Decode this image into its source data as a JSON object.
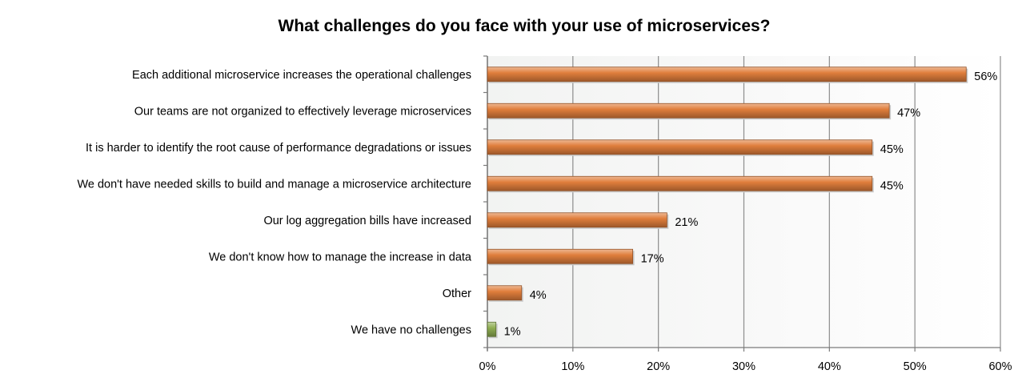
{
  "chart_data": {
    "type": "bar",
    "orientation": "horizontal",
    "title": "What challenges do you face with your use of microservices?",
    "xlabel": "",
    "ylabel": "",
    "categories": [
      "Each additional microservice increases the operational challenges",
      "Our teams are not organized to effectively leverage microservices",
      "It is harder to identify the root cause of performance degradations or issues",
      "We don't have needed skills to build and manage a microservice architecture",
      "Our log aggregation bills have increased",
      "We don't know how to manage the increase in data",
      "Other",
      "We have no challenges"
    ],
    "values": [
      56,
      47,
      45,
      45,
      21,
      17,
      4,
      1
    ],
    "value_labels": [
      "56%",
      "47%",
      "45%",
      "45%",
      "21%",
      "17%",
      "4%",
      "1%"
    ],
    "bar_colors": [
      "#e07e3c",
      "#e07e3c",
      "#e07e3c",
      "#e07e3c",
      "#e07e3c",
      "#e07e3c",
      "#e07e3c",
      "#8fae52"
    ],
    "xlim": [
      0,
      60
    ],
    "ticks": [
      0,
      10,
      20,
      30,
      40,
      50,
      60
    ],
    "tick_labels": [
      "0%",
      "10%",
      "20%",
      "30%",
      "40%",
      "50%",
      "60%"
    ],
    "grid": true,
    "legend": "none"
  }
}
